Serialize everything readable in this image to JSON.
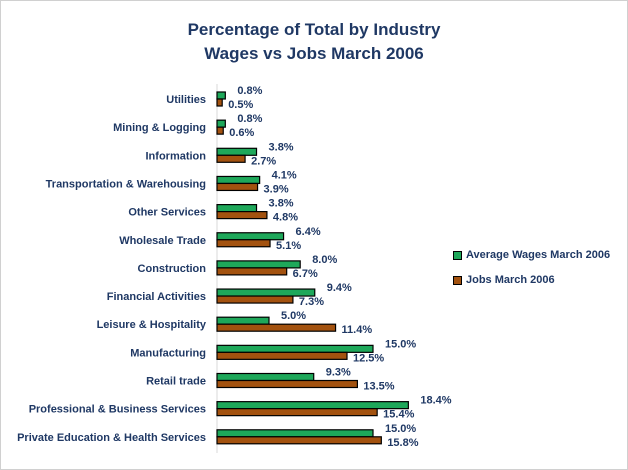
{
  "chart_data": {
    "type": "bar",
    "orientation": "horizontal",
    "title": "Percentage of Total by Industry",
    "subtitle": "Wages vs Jobs March 2006",
    "categories": [
      "Utilities",
      "Mining & Logging",
      "Information",
      "Transportation & Warehousing",
      "Other Services",
      "Wholesale Trade",
      "Construction",
      "Financial Activities",
      "Leisure & Hospitality",
      "Manufacturing",
      "Retail trade",
      "Professional & Business Services",
      "Private Education & Health Services"
    ],
    "series": [
      {
        "name": "Average Wages March 2006",
        "color": "#1ea85a",
        "values": [
          0.8,
          0.8,
          3.8,
          4.1,
          3.8,
          6.4,
          8.0,
          9.4,
          5.0,
          15.0,
          9.3,
          18.4,
          15.0
        ]
      },
      {
        "name": "Jobs March 2006",
        "color": "#a3520f",
        "values": [
          0.5,
          0.6,
          2.7,
          3.9,
          4.8,
          5.1,
          6.7,
          7.3,
          11.4,
          12.5,
          13.5,
          15.4,
          15.8
        ]
      }
    ],
    "value_format": "%",
    "legend": "right",
    "grid": false
  }
}
